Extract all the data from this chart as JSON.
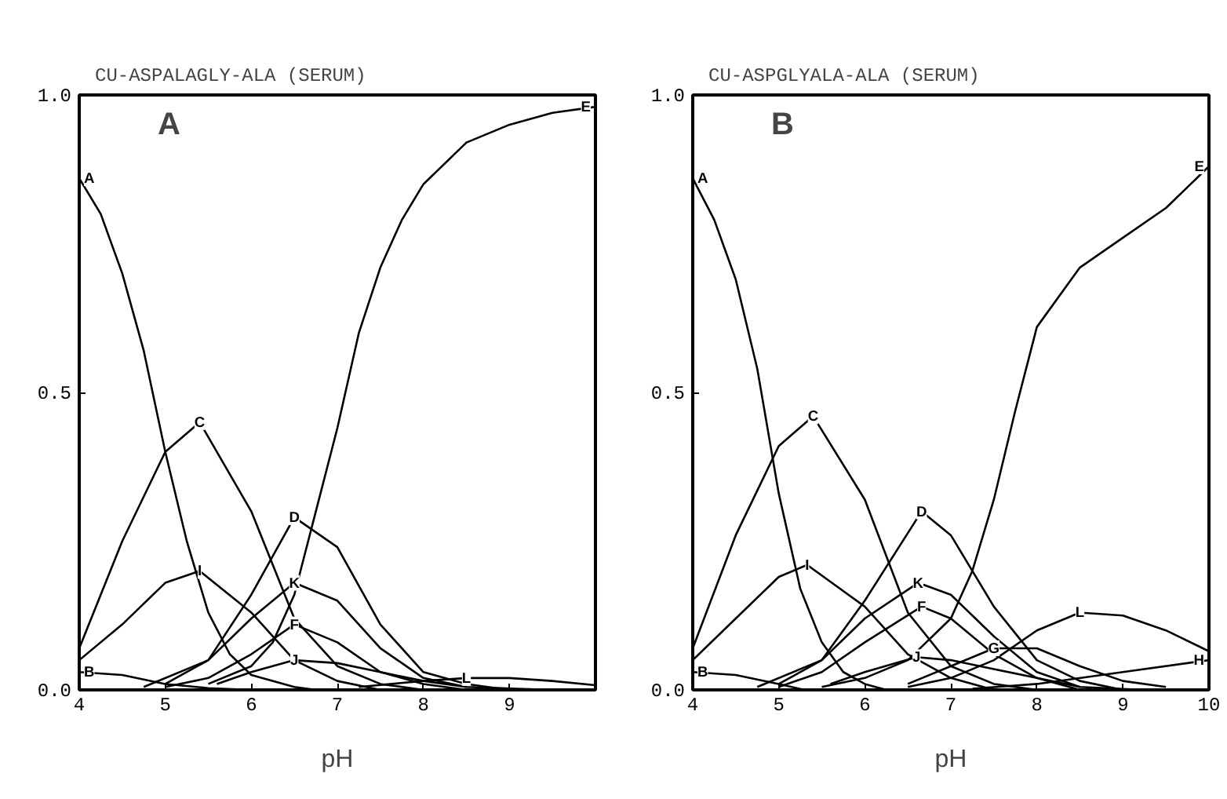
{
  "chart_data": [
    {
      "type": "line",
      "title": "CU-ASPALAGLY-ALA    (SERUM)",
      "xlabel": "pH",
      "xlim": [
        4,
        10
      ],
      "ylim": [
        0,
        1.0
      ],
      "xticks": [
        4,
        5,
        6,
        7,
        8,
        9,
        {
          "value": 10,
          "label": null
        }
      ],
      "yticks": [
        {
          "value": 0,
          "label": "0.0"
        },
        {
          "value": 0.5,
          "label": "0.5"
        },
        {
          "value": 1.0,
          "label": "1.0"
        }
      ],
      "grid": false,
      "line_style": "solid",
      "marker": "none",
      "series": [
        {
          "name": "A",
          "color": "#000000",
          "x": [
            4,
            4.25,
            4.5,
            4.75,
            5,
            5.25,
            5.5,
            5.75,
            6,
            6.5,
            6.75
          ],
          "values": [
            0.86,
            0.8,
            0.7,
            0.57,
            0.4,
            0.25,
            0.13,
            0.06,
            0.025,
            0.005,
            0
          ]
        },
        {
          "name": "B",
          "color": "#000000",
          "x": [
            4,
            4.5,
            5,
            5.5,
            6
          ],
          "values": [
            0.03,
            0.025,
            0.01,
            0.003,
            0
          ]
        },
        {
          "name": "C",
          "color": "#000000",
          "x": [
            4,
            4.5,
            5,
            5.4,
            6,
            6.5,
            7,
            7.5,
            8
          ],
          "values": [
            0.07,
            0.25,
            0.4,
            0.45,
            0.3,
            0.12,
            0.04,
            0.01,
            0
          ]
        },
        {
          "name": "D",
          "color": "#000000",
          "x": [
            5,
            5.5,
            6,
            6.5,
            7,
            7.5,
            8,
            8.5,
            9
          ],
          "values": [
            0.01,
            0.05,
            0.16,
            0.29,
            0.24,
            0.11,
            0.03,
            0.01,
            0
          ]
        },
        {
          "name": "E",
          "color": "#000000",
          "x": [
            5.5,
            6,
            6.25,
            6.5,
            6.75,
            7,
            7.25,
            7.5,
            7.75,
            8,
            8.5,
            9,
            9.5,
            10
          ],
          "values": [
            0.01,
            0.04,
            0.08,
            0.16,
            0.3,
            0.44,
            0.6,
            0.71,
            0.79,
            0.85,
            0.92,
            0.95,
            0.97,
            0.98
          ]
        },
        {
          "name": "F",
          "color": "#000000",
          "x": [
            5,
            5.5,
            6,
            6.5,
            7,
            7.5,
            8,
            8.5
          ],
          "values": [
            0.005,
            0.02,
            0.06,
            0.11,
            0.08,
            0.03,
            0.01,
            0
          ]
        },
        {
          "name": "I",
          "color": "#000000",
          "x": [
            4,
            4.5,
            5,
            5.4,
            6,
            6.5,
            7,
            7.5
          ],
          "values": [
            0.05,
            0.11,
            0.18,
            0.2,
            0.13,
            0.05,
            0.015,
            0
          ]
        },
        {
          "name": "J",
          "color": "#000000",
          "x": [
            5.6,
            6,
            6.5,
            7,
            7.5,
            8,
            8.5,
            9.5
          ],
          "values": [
            0.01,
            0.03,
            0.05,
            0.045,
            0.03,
            0.015,
            0.005,
            0
          ]
        },
        {
          "name": "K",
          "color": "#000000",
          "x": [
            4.75,
            5.5,
            6,
            6.5,
            7,
            7.5,
            8,
            8.5
          ],
          "values": [
            0.005,
            0.05,
            0.12,
            0.18,
            0.15,
            0.07,
            0.02,
            0.005
          ]
        },
        {
          "name": "L",
          "color": "#000000",
          "x": [
            7.25,
            8,
            8.5,
            9,
            9.5,
            10
          ],
          "values": [
            0.005,
            0.015,
            0.02,
            0.02,
            0.015,
            0.008
          ]
        }
      ],
      "annotations": [
        "A"
      ]
    },
    {
      "type": "line",
      "title": "CU-ASPGLYALA-ALA    (SERUM)",
      "xlabel": "pH",
      "xlim": [
        4,
        10
      ],
      "ylim": [
        0,
        1.0
      ],
      "xticks": [
        4,
        5,
        6,
        7,
        8,
        9,
        10
      ],
      "yticks": [
        {
          "value": 0,
          "label": "0.0"
        },
        {
          "value": 0.5,
          "label": "0.5"
        },
        {
          "value": 1.0,
          "label": "1.0"
        }
      ],
      "grid": false,
      "line_style": "solid",
      "marker": "none",
      "series": [
        {
          "name": "A",
          "color": "#000000",
          "x": [
            4,
            4.25,
            4.5,
            4.75,
            5,
            5.25,
            5.5,
            5.75,
            6,
            6.25
          ],
          "values": [
            0.86,
            0.79,
            0.69,
            0.54,
            0.33,
            0.17,
            0.08,
            0.03,
            0.01,
            0
          ]
        },
        {
          "name": "B",
          "color": "#000000",
          "x": [
            4,
            4.5,
            5,
            5.3
          ],
          "values": [
            0.03,
            0.025,
            0.01,
            0
          ]
        },
        {
          "name": "C",
          "color": "#000000",
          "x": [
            4,
            4.5,
            5,
            5.4,
            6,
            6.5,
            7,
            7.5,
            8
          ],
          "values": [
            0.07,
            0.26,
            0.41,
            0.46,
            0.32,
            0.13,
            0.04,
            0.01,
            0
          ]
        },
        {
          "name": "D",
          "color": "#000000",
          "x": [
            5,
            5.5,
            6,
            6.66,
            7,
            7.5,
            8,
            8.5,
            9
          ],
          "values": [
            0.01,
            0.05,
            0.15,
            0.3,
            0.26,
            0.14,
            0.05,
            0.015,
            0
          ]
        },
        {
          "name": "E",
          "color": "#000000",
          "x": [
            5.5,
            6,
            6.5,
            7,
            7.25,
            7.5,
            7.75,
            8,
            8.5,
            9,
            9.5,
            10
          ],
          "values": [
            0.005,
            0.02,
            0.05,
            0.12,
            0.2,
            0.32,
            0.47,
            0.61,
            0.71,
            0.76,
            0.81,
            0.88
          ]
        },
        {
          "name": "F",
          "color": "#000000",
          "x": [
            5,
            5.5,
            6,
            6.66,
            7,
            7.5,
            8,
            8.5
          ],
          "values": [
            0.005,
            0.03,
            0.08,
            0.14,
            0.12,
            0.06,
            0.02,
            0
          ]
        },
        {
          "name": "G",
          "color": "#000000",
          "x": [
            6.5,
            7,
            7.5,
            8,
            8.5,
            9,
            9.5
          ],
          "values": [
            0.01,
            0.04,
            0.07,
            0.07,
            0.04,
            0.015,
            0.005
          ]
        },
        {
          "name": "H",
          "color": "#000000",
          "x": [
            7.25,
            8,
            9,
            10
          ],
          "values": [
            0.002,
            0.01,
            0.03,
            0.05
          ]
        },
        {
          "name": "I",
          "color": "#000000",
          "x": [
            4,
            4.5,
            5,
            5.33,
            6,
            6.5,
            7,
            7.5
          ],
          "values": [
            0.05,
            0.12,
            0.19,
            0.21,
            0.14,
            0.06,
            0.02,
            0
          ]
        },
        {
          "name": "J",
          "color": "#000000",
          "x": [
            5.6,
            6,
            6.6,
            7,
            7.5,
            8,
            8.5,
            9.25
          ],
          "values": [
            0.01,
            0.03,
            0.055,
            0.05,
            0.035,
            0.02,
            0.005,
            0
          ]
        },
        {
          "name": "K",
          "color": "#000000",
          "x": [
            4.75,
            5.5,
            6,
            6.62,
            7,
            7.5,
            8,
            8.5
          ],
          "values": [
            0.005,
            0.05,
            0.12,
            0.18,
            0.16,
            0.09,
            0.03,
            0.005
          ]
        },
        {
          "name": "L",
          "color": "#000000",
          "x": [
            6.5,
            7,
            7.5,
            8,
            8.5,
            9,
            9.5,
            10
          ],
          "values": [
            0.005,
            0.02,
            0.05,
            0.1,
            0.13,
            0.125,
            0.1,
            0.065
          ]
        }
      ],
      "annotations": [
        "B"
      ]
    }
  ]
}
